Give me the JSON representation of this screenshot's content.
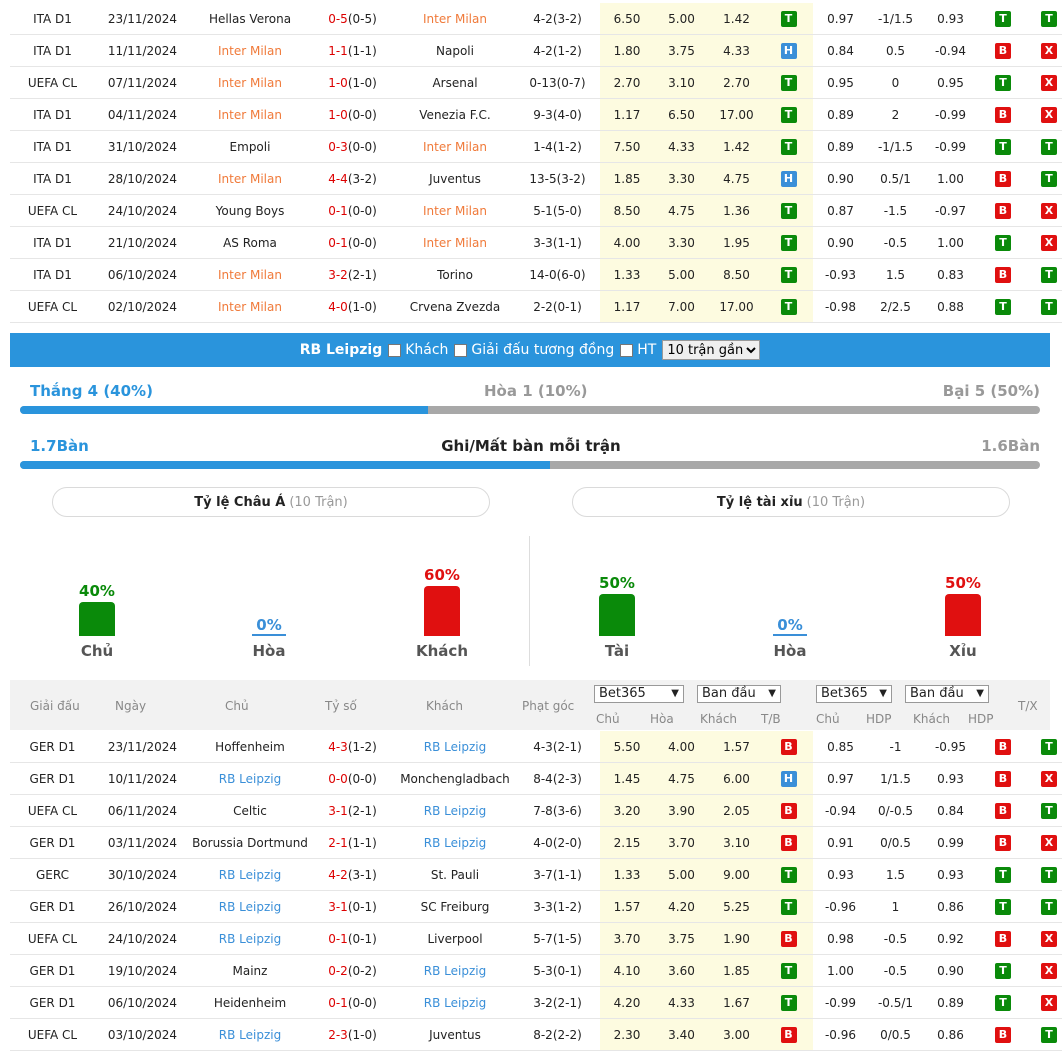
{
  "inter_rows": [
    {
      "lg": "ITA D1",
      "date": "23/11/2024",
      "home": "Hellas Verona",
      "score": "0-5",
      "ht": "(0-5)",
      "away": "Inter Milan",
      "corner": "4-2(3-2)",
      "o1": "6.50",
      "o2": "5.00",
      "o3": "1.42",
      "tb": "T",
      "a1": "0.97",
      "hdp": "-1/1.5",
      "a2": "0.93",
      "hdp_r": "T",
      "tx": "T",
      "hl": "away"
    },
    {
      "lg": "ITA D1",
      "date": "11/11/2024",
      "home": "Inter Milan",
      "score": "1-1",
      "ht": "(1-1)",
      "away": "Napoli",
      "corner": "4-2(1-2)",
      "o1": "1.80",
      "o2": "3.75",
      "o3": "4.33",
      "tb": "H",
      "a1": "0.84",
      "hdp": "0.5",
      "a2": "-0.94",
      "hdp_r": "B",
      "tx": "X",
      "hl": "home"
    },
    {
      "lg": "UEFA CL",
      "date": "07/11/2024",
      "home": "Inter Milan",
      "score": "1-0",
      "ht": "(1-0)",
      "away": "Arsenal",
      "corner": "0-13(0-7)",
      "o1": "2.70",
      "o2": "3.10",
      "o3": "2.70",
      "tb": "T",
      "a1": "0.95",
      "hdp": "0",
      "a2": "0.95",
      "hdp_r": "T",
      "tx": "X",
      "hl": "home"
    },
    {
      "lg": "ITA D1",
      "date": "04/11/2024",
      "home": "Inter Milan",
      "score": "1-0",
      "ht": "(0-0)",
      "away": "Venezia F.C.",
      "corner": "9-3(4-0)",
      "o1": "1.17",
      "o2": "6.50",
      "o3": "17.00",
      "tb": "T",
      "a1": "0.89",
      "hdp": "2",
      "a2": "-0.99",
      "hdp_r": "B",
      "tx": "X",
      "hl": "home"
    },
    {
      "lg": "ITA D1",
      "date": "31/10/2024",
      "home": "Empoli",
      "score": "0-3",
      "ht": "(0-0)",
      "away": "Inter Milan",
      "corner": "1-4(1-2)",
      "o1": "7.50",
      "o2": "4.33",
      "o3": "1.42",
      "tb": "T",
      "a1": "0.89",
      "hdp": "-1/1.5",
      "a2": "-0.99",
      "hdp_r": "T",
      "tx": "T",
      "hl": "away"
    },
    {
      "lg": "ITA D1",
      "date": "28/10/2024",
      "home": "Inter Milan",
      "score": "4-4",
      "ht": "(3-2)",
      "away": "Juventus",
      "corner": "13-5(3-2)",
      "o1": "1.85",
      "o2": "3.30",
      "o3": "4.75",
      "tb": "H",
      "a1": "0.90",
      "hdp": "0.5/1",
      "a2": "1.00",
      "hdp_r": "B",
      "tx": "T",
      "hl": "home"
    },
    {
      "lg": "UEFA CL",
      "date": "24/10/2024",
      "home": "Young Boys",
      "score": "0-1",
      "ht": "(0-0)",
      "away": "Inter Milan",
      "corner": "5-1(5-0)",
      "o1": "8.50",
      "o2": "4.75",
      "o3": "1.36",
      "tb": "T",
      "a1": "0.87",
      "hdp": "-1.5",
      "a2": "-0.97",
      "hdp_r": "B",
      "tx": "X",
      "hl": "away"
    },
    {
      "lg": "ITA D1",
      "date": "21/10/2024",
      "home": "AS Roma",
      "score": "0-1",
      "ht": "(0-0)",
      "away": "Inter Milan",
      "corner": "3-3(1-1)",
      "o1": "4.00",
      "o2": "3.30",
      "o3": "1.95",
      "tb": "T",
      "a1": "0.90",
      "hdp": "-0.5",
      "a2": "1.00",
      "hdp_r": "T",
      "tx": "X",
      "hl": "away"
    },
    {
      "lg": "ITA D1",
      "date": "06/10/2024",
      "home": "Inter Milan",
      "score": "3-2",
      "ht": "(2-1)",
      "away": "Torino",
      "corner": "14-0(6-0)",
      "o1": "1.33",
      "o2": "5.00",
      "o3": "8.50",
      "tb": "T",
      "a1": "-0.93",
      "hdp": "1.5",
      "a2": "0.83",
      "hdp_r": "B",
      "tx": "T",
      "hl": "home"
    },
    {
      "lg": "UEFA CL",
      "date": "02/10/2024",
      "home": "Inter Milan",
      "score": "4-0",
      "ht": "(1-0)",
      "away": "Crvena Zvezda",
      "corner": "2-2(0-1)",
      "o1": "1.17",
      "o2": "7.00",
      "o3": "17.00",
      "tb": "T",
      "a1": "-0.98",
      "hdp": "2/2.5",
      "a2": "0.88",
      "hdp_r": "T",
      "tx": "T",
      "hl": "home"
    }
  ],
  "rb_bar": {
    "team": "RB Leipzig",
    "opt1": "Khách",
    "opt2": "Giải đấu tương đồng",
    "opt3": "HT",
    "select": "10 trận gần"
  },
  "summary": {
    "win": "Thắng 4 (40%)",
    "draw": "Hòa 1 (10%)",
    "loss": "Bại 5 (50%)",
    "win_fraction": 0.4,
    "gf": "1.7Bàn",
    "goals_title": "Ghi/Mất bàn mỗi trận",
    "ga": "1.6Bàn",
    "goals_fraction": 0.52
  },
  "pill_asian": {
    "title": "Tỷ lệ Châu Á",
    "count": "(10 Trận)"
  },
  "pill_ou": {
    "title": "Tỷ lệ tài xỉu",
    "count": "(10 Trận)"
  },
  "asian_bars": [
    {
      "pct": "40%",
      "label": "Chủ",
      "value": 40,
      "color": "#0a8a0a"
    },
    {
      "pct": "0%",
      "label": "Hòa",
      "value": 0,
      "color": "#3a8fd8"
    },
    {
      "pct": "60%",
      "label": "Khách",
      "value": 60,
      "color": "#e01010"
    }
  ],
  "ou_bars": [
    {
      "pct": "50%",
      "label": "Tài",
      "value": 50,
      "color": "#0a8a0a"
    },
    {
      "pct": "0%",
      "label": "Hòa",
      "value": 0,
      "color": "#3a8fd8"
    },
    {
      "pct": "50%",
      "label": "Xỉu",
      "value": 50,
      "color": "#e01010"
    }
  ],
  "header": {
    "league": "Giải đấu",
    "date": "Ngày",
    "home": "Chủ",
    "score": "Tỷ số",
    "away": "Khách",
    "corner": "Phạt góc",
    "book1": "Bet365",
    "init1": "Ban đầu",
    "book2": "Bet365",
    "init2": "Ban đầu",
    "c_home": "Chủ",
    "c_draw": "Hòa",
    "c_away": "Khách",
    "c_tb": "T/B",
    "h_home": "Chủ",
    "h_hdp": "HDP",
    "h_away": "Khách",
    "h_hdp2": "HDP",
    "tx": "T/X"
  },
  "rb_rows": [
    {
      "lg": "GER D1",
      "date": "23/11/2024",
      "home": "Hoffenheim",
      "score": "4-3",
      "ht": "(1-2)",
      "away": "RB Leipzig",
      "corner": "4-3(2-1)",
      "o1": "5.50",
      "o2": "4.00",
      "o3": "1.57",
      "tb": "B",
      "a1": "0.85",
      "hdp": "-1",
      "a2": "-0.95",
      "hdp_r": "B",
      "tx": "T",
      "hl": "away"
    },
    {
      "lg": "GER D1",
      "date": "10/11/2024",
      "home": "RB Leipzig",
      "score": "0-0",
      "ht": "(0-0)",
      "away": "Monchengladbach",
      "corner": "8-4(2-3)",
      "o1": "1.45",
      "o2": "4.75",
      "o3": "6.00",
      "tb": "H",
      "a1": "0.97",
      "hdp": "1/1.5",
      "a2": "0.93",
      "hdp_r": "B",
      "tx": "X",
      "hl": "home"
    },
    {
      "lg": "UEFA CL",
      "date": "06/11/2024",
      "home": "Celtic",
      "score": "3-1",
      "ht": "(2-1)",
      "away": "RB Leipzig",
      "corner": "7-8(3-6)",
      "o1": "3.20",
      "o2": "3.90",
      "o3": "2.05",
      "tb": "B",
      "a1": "-0.94",
      "hdp": "0/-0.5",
      "a2": "0.84",
      "hdp_r": "B",
      "tx": "T",
      "hl": "away"
    },
    {
      "lg": "GER D1",
      "date": "03/11/2024",
      "home": "Borussia Dortmund",
      "score": "2-1",
      "ht": "(1-1)",
      "away": "RB Leipzig",
      "corner": "4-0(2-0)",
      "o1": "2.15",
      "o2": "3.70",
      "o3": "3.10",
      "tb": "B",
      "a1": "0.91",
      "hdp": "0/0.5",
      "a2": "0.99",
      "hdp_r": "B",
      "tx": "X",
      "hl": "away"
    },
    {
      "lg": "GERC",
      "date": "30/10/2024",
      "home": "RB Leipzig",
      "score": "4-2",
      "ht": "(3-1)",
      "away": "St. Pauli",
      "corner": "3-7(1-1)",
      "o1": "1.33",
      "o2": "5.00",
      "o3": "9.00",
      "tb": "T",
      "a1": "0.93",
      "hdp": "1.5",
      "a2": "0.93",
      "hdp_r": "T",
      "tx": "T",
      "hl": "home"
    },
    {
      "lg": "GER D1",
      "date": "26/10/2024",
      "home": "RB Leipzig",
      "score": "3-1",
      "ht": "(0-1)",
      "away": "SC Freiburg",
      "corner": "3-3(1-2)",
      "o1": "1.57",
      "o2": "4.20",
      "o3": "5.25",
      "tb": "T",
      "a1": "-0.96",
      "hdp": "1",
      "a2": "0.86",
      "hdp_r": "T",
      "tx": "T",
      "hl": "home"
    },
    {
      "lg": "UEFA CL",
      "date": "24/10/2024",
      "home": "RB Leipzig",
      "score": "0-1",
      "ht": "(0-1)",
      "away": "Liverpool",
      "corner": "5-7(1-5)",
      "o1": "3.70",
      "o2": "3.75",
      "o3": "1.90",
      "tb": "B",
      "a1": "0.98",
      "hdp": "-0.5",
      "a2": "0.92",
      "hdp_r": "B",
      "tx": "X",
      "hl": "home"
    },
    {
      "lg": "GER D1",
      "date": "19/10/2024",
      "home": "Mainz",
      "score": "0-2",
      "ht": "(0-2)",
      "away": "RB Leipzig",
      "corner": "5-3(0-1)",
      "o1": "4.10",
      "o2": "3.60",
      "o3": "1.85",
      "tb": "T",
      "a1": "1.00",
      "hdp": "-0.5",
      "a2": "0.90",
      "hdp_r": "T",
      "tx": "X",
      "hl": "away"
    },
    {
      "lg": "GER D1",
      "date": "06/10/2024",
      "home": "Heidenheim",
      "score": "0-1",
      "ht": "(0-0)",
      "away": "RB Leipzig",
      "corner": "3-2(2-1)",
      "o1": "4.20",
      "o2": "4.33",
      "o3": "1.67",
      "tb": "T",
      "a1": "-0.99",
      "hdp": "-0.5/1",
      "a2": "0.89",
      "hdp_r": "T",
      "tx": "X",
      "hl": "away"
    },
    {
      "lg": "UEFA CL",
      "date": "03/10/2024",
      "home": "RB Leipzig",
      "score": "2-3",
      "ht": "(1-0)",
      "away": "Juventus",
      "corner": "8-2(2-2)",
      "o1": "2.30",
      "o2": "3.40",
      "o3": "3.00",
      "tb": "B",
      "a1": "-0.96",
      "hdp": "0/0.5",
      "a2": "0.86",
      "hdp_r": "B",
      "tx": "T",
      "hl": "home"
    }
  ]
}
